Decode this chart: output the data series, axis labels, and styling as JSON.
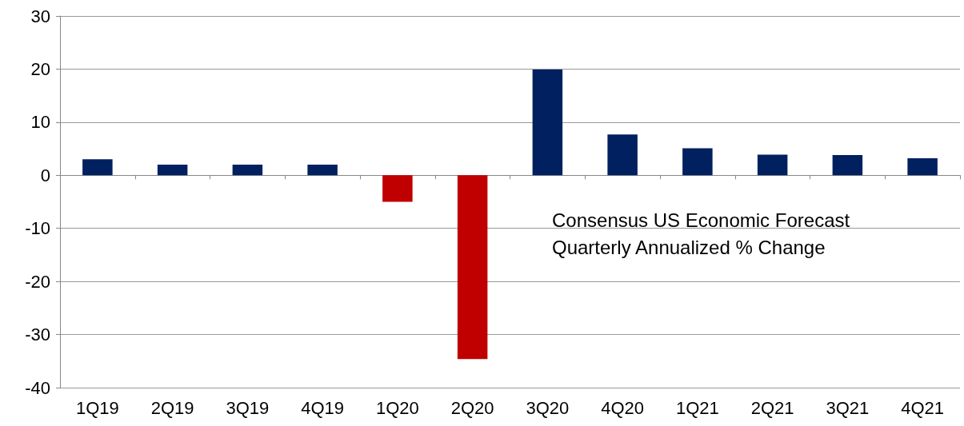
{
  "chart_data": {
    "type": "bar",
    "categories": [
      "1Q19",
      "2Q19",
      "3Q19",
      "4Q19",
      "1Q20",
      "2Q20",
      "3Q20",
      "4Q20",
      "1Q21",
      "2Q21",
      "3Q21",
      "4Q21"
    ],
    "values": [
      3.0,
      2.0,
      2.0,
      2.0,
      -5.0,
      -34.6,
      19.9,
      7.7,
      5.1,
      3.9,
      3.8,
      3.2
    ],
    "colors": [
      "#002060",
      "#002060",
      "#002060",
      "#002060",
      "#c00000",
      "#c00000",
      "#002060",
      "#002060",
      "#002060",
      "#002060",
      "#002060",
      "#002060"
    ],
    "ylim": [
      -40,
      30
    ],
    "yticks": [
      -40,
      -30,
      -20,
      -10,
      0,
      10,
      20,
      30
    ],
    "grid": "y",
    "annotations": [
      "Consensus US Economic Forecast",
      "Quarterly Annualized % Change"
    ]
  }
}
